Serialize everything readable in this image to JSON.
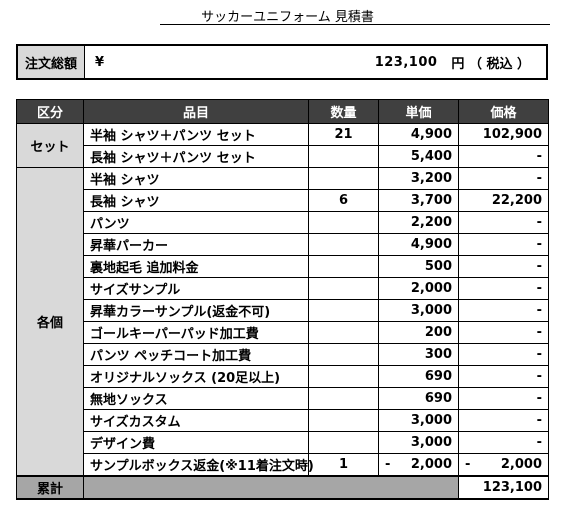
{
  "document": {
    "title": "サッカーユニフォーム 見積書"
  },
  "total": {
    "label": "注文総額",
    "currency": "¥",
    "amount": "123,100",
    "unit": "円 （ 税込 ）"
  },
  "table": {
    "headers": [
      "区分",
      "品目",
      "数量",
      "単価",
      "価格"
    ],
    "groups": [
      {
        "category": "セット",
        "rows": [
          {
            "item": "半袖 シャツ＋パンツ セット",
            "qty": "21",
            "price_neg": "",
            "price": "4,900",
            "amount_neg": "",
            "amount": "102,900"
          },
          {
            "item": "長袖 シャツ＋パンツ セット",
            "qty": "",
            "price_neg": "",
            "price": "5,400",
            "amount_neg": "",
            "amount": "-"
          }
        ]
      },
      {
        "category": "各個",
        "rows": [
          {
            "item": "半袖 シャツ",
            "qty": "",
            "price_neg": "",
            "price": "3,200",
            "amount_neg": "",
            "amount": "-"
          },
          {
            "item": "長袖 シャツ",
            "qty": "6",
            "price_neg": "",
            "price": "3,700",
            "amount_neg": "",
            "amount": "22,200"
          },
          {
            "item": "パンツ",
            "qty": "",
            "price_neg": "",
            "price": "2,200",
            "amount_neg": "",
            "amount": "-"
          },
          {
            "item": "昇華パーカー",
            "qty": "",
            "price_neg": "",
            "price": "4,900",
            "amount_neg": "",
            "amount": "-"
          },
          {
            "item": "裏地起毛 追加料金",
            "qty": "",
            "price_neg": "",
            "price": "500",
            "amount_neg": "",
            "amount": "-"
          },
          {
            "item": "サイズサンプル",
            "qty": "",
            "price_neg": "",
            "price": "2,000",
            "amount_neg": "",
            "amount": "-"
          },
          {
            "item": "昇華カラーサンプル(返金不可)",
            "qty": "",
            "price_neg": "",
            "price": "3,000",
            "amount_neg": "",
            "amount": "-"
          },
          {
            "item": "ゴールキーパーパッド加工費",
            "qty": "",
            "price_neg": "",
            "price": "200",
            "amount_neg": "",
            "amount": "-"
          },
          {
            "item": "パンツ ペッチコート加工費",
            "qty": "",
            "price_neg": "",
            "price": "300",
            "amount_neg": "",
            "amount": "-"
          },
          {
            "item": "オリジナルソックス (20足以上)",
            "qty": "",
            "price_neg": "",
            "price": "690",
            "amount_neg": "",
            "amount": "-"
          },
          {
            "item": "無地ソックス",
            "qty": "",
            "price_neg": "",
            "price": "690",
            "amount_neg": "",
            "amount": "-"
          },
          {
            "item": "サイズカスタム",
            "qty": "",
            "price_neg": "",
            "price": "3,000",
            "amount_neg": "",
            "amount": "-"
          },
          {
            "item": "デザイン費",
            "qty": "",
            "price_neg": "",
            "price": "3,000",
            "amount_neg": "",
            "amount": "-"
          },
          {
            "item": "サンプルボックス返金(※11着注文時)",
            "qty": "1",
            "price_neg": "-",
            "price": "2,000",
            "amount_neg": "-",
            "amount": "2,000"
          }
        ]
      }
    ],
    "summary": {
      "label": "累計",
      "amount": "123,100"
    }
  }
}
